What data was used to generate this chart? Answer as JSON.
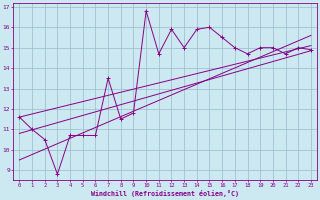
{
  "xlabel": "Windchill (Refroidissement éolien,°C)",
  "xlim": [
    -0.5,
    23.5
  ],
  "ylim": [
    8.5,
    17.2
  ],
  "xticks": [
    0,
    1,
    2,
    3,
    4,
    5,
    6,
    7,
    8,
    9,
    10,
    11,
    12,
    13,
    14,
    15,
    16,
    17,
    18,
    19,
    20,
    21,
    22,
    23
  ],
  "yticks": [
    9,
    10,
    11,
    12,
    13,
    14,
    15,
    16,
    17
  ],
  "bg_color": "#cce8f0",
  "line_color": "#880088",
  "grid_color": "#99bbcc",
  "line1_x": [
    0,
    1,
    2,
    3,
    4,
    5,
    6,
    7,
    8,
    9,
    10,
    11,
    12,
    13,
    14,
    15,
    16,
    17,
    18,
    19,
    20,
    21,
    22,
    23
  ],
  "line1_y": [
    11.6,
    11.0,
    10.5,
    8.8,
    10.7,
    10.7,
    10.7,
    13.5,
    11.5,
    11.8,
    16.8,
    14.7,
    15.9,
    15.0,
    15.9,
    16.0,
    15.5,
    15.0,
    14.7,
    15.0,
    15.0,
    14.7,
    15.0,
    14.9
  ],
  "line2_x": [
    0,
    23
  ],
  "line2_y": [
    10.8,
    14.85
  ],
  "line3_x": [
    0,
    23
  ],
  "line3_y": [
    11.6,
    15.1
  ],
  "line4_x": [
    0,
    23
  ],
  "line4_y": [
    9.5,
    15.6
  ]
}
